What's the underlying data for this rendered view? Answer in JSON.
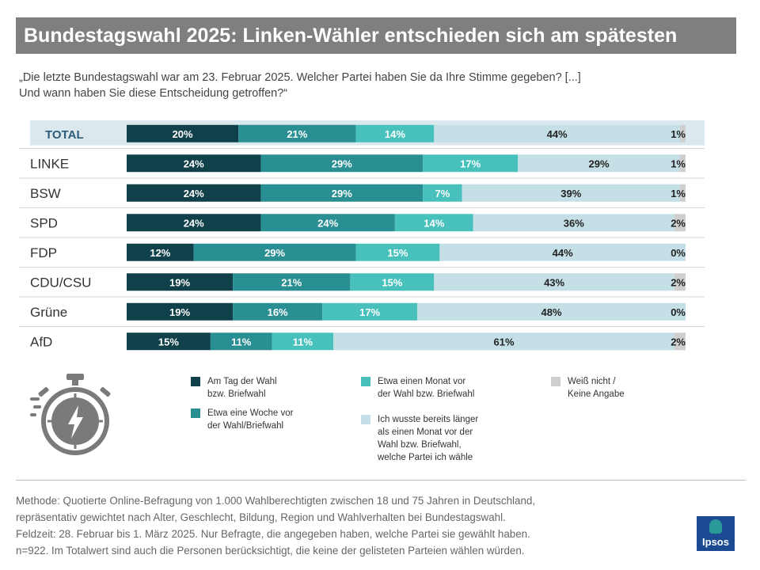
{
  "title": "Bundestagswahl 2025: Linken-Wähler entschieden sich am spätesten",
  "question_lines": [
    "„Die letzte Bundestagswahl war am 23. Februar 2025. Welcher Partei haben Sie da Ihre Stimme gegeben? [...]",
    "Und wann haben Sie diese Entscheidung getroffen?“"
  ],
  "colors": {
    "day": "#10404a",
    "week": "#2a8f93",
    "month": "#48c1bd",
    "longer": "#c5dfe6",
    "unknown": "#cfcfcf",
    "total_band": "#dbe9ef",
    "total_label": "#2d5b78"
  },
  "chart_data": {
    "type": "bar",
    "orientation": "horizontal",
    "stacked": true,
    "percent_scale": true,
    "categories": [
      "TOTAL",
      "LINKE",
      "BSW",
      "SPD",
      "FDP",
      "CDU/CSU",
      "Grüne",
      "AfD"
    ],
    "series": [
      {
        "name": "Am Tag der Wahl bzw. Briefwahl",
        "values": [
          20,
          24,
          24,
          24,
          12,
          19,
          19,
          15
        ]
      },
      {
        "name": "Etwa eine Woche vor der Wahl/Briefwahl",
        "values": [
          21,
          29,
          29,
          24,
          29,
          21,
          16,
          11
        ]
      },
      {
        "name": "Etwa einen Monat vor der Wahl bzw. Briefwahl",
        "values": [
          14,
          17,
          7,
          14,
          15,
          15,
          17,
          11
        ]
      },
      {
        "name": "Ich wusste bereits länger als einen Monat vor der Wahl bzw. Briefwahl, welche Partei ich wähle",
        "values": [
          44,
          29,
          39,
          36,
          44,
          43,
          48,
          61
        ]
      },
      {
        "name": "Weiß nicht / Keine Angabe",
        "values": [
          1,
          1,
          1,
          2,
          0,
          2,
          0,
          2
        ]
      }
    ],
    "value_suffix": "%",
    "legend_position": "bottom"
  },
  "legend": [
    {
      "lines": [
        "Am Tag der Wahl",
        "bzw. Briefwahl"
      ]
    },
    {
      "lines": [
        "Etwa eine Woche vor",
        "der Wahl/Briefwahl"
      ]
    },
    {
      "lines": [
        "Etwa einen Monat vor",
        "der Wahl bzw. Briefwahl"
      ]
    },
    {
      "lines": [
        "Ich wusste bereits länger",
        "als einen Monat vor der",
        "Wahl bzw. Briefwahl,",
        "welche Partei ich wähle"
      ]
    },
    {
      "lines": [
        "Weiß nicht /",
        "Keine Angabe"
      ]
    }
  ],
  "method_lines": [
    "Methode: Quotierte Online-Befragung von 1.000 Wahlberechtigten zwischen 18 und 75 Jahren in Deutschland,",
    "repräsentativ gewichtet nach Alter, Geschlecht, Bildung, Region und Wahlverhalten bei Bundestagswahl.",
    "Feldzeit: 28. Februar bis 1. März 2025. Nur Befragte, die angegeben haben, welche Partei sie gewählt haben.",
    "n=922. Im Totalwert sind auch die Personen berücksichtigt, die keine der gelisteten Parteien wählen würden."
  ],
  "logo_text": "Ipsos",
  "icons": {
    "stopwatch": "stopwatch-lightning-icon"
  }
}
